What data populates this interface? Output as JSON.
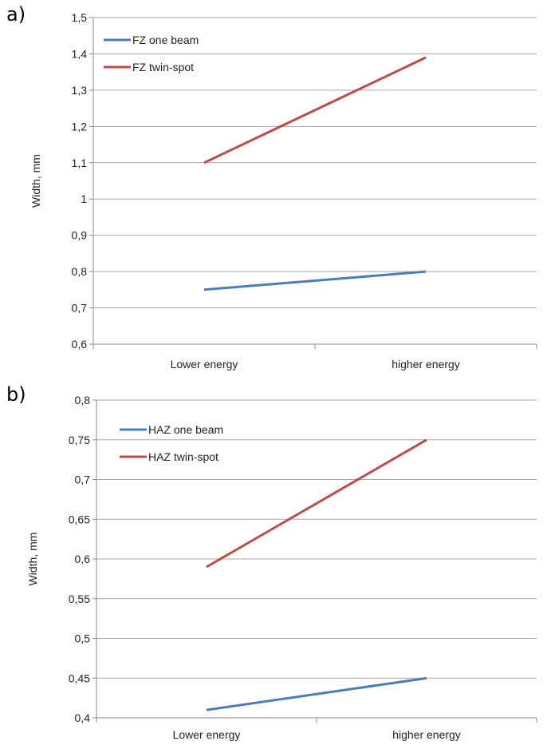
{
  "chart_data": [
    {
      "panel_label": "a)",
      "type": "line",
      "categories": [
        "Lower energy",
        "higher energy"
      ],
      "ylabel": "Width, mm",
      "ylim": [
        0.6,
        1.5
      ],
      "yticks": [
        "0,6",
        "0,7",
        "0,8",
        "0,9",
        "1",
        "1,1",
        "1,2",
        "1,3",
        "1,4",
        "1,5"
      ],
      "grid": true,
      "legend_position": "top-left",
      "series": [
        {
          "name": "FZ one beam",
          "color": "#4a7ebb",
          "values": [
            0.75,
            0.8
          ]
        },
        {
          "name": "FZ twin-spot",
          "color": "#be4b48",
          "values": [
            1.1,
            1.39
          ]
        }
      ]
    },
    {
      "panel_label": "b)",
      "type": "line",
      "categories": [
        "Lower energy",
        "higher energy"
      ],
      "ylabel": "Width, mm",
      "ylim": [
        0.4,
        0.8
      ],
      "yticks": [
        "0,4",
        "0,45",
        "0,5",
        "0,55",
        "0,6",
        "0,65",
        "0,7",
        "0,75",
        "0,8"
      ],
      "grid": true,
      "legend_position": "top-left",
      "series": [
        {
          "name": "HAZ one beam",
          "color": "#4a7ebb",
          "values": [
            0.41,
            0.45
          ]
        },
        {
          "name": "HAZ twin-spot",
          "color": "#be4b48",
          "values": [
            0.59,
            0.75
          ]
        }
      ]
    }
  ]
}
